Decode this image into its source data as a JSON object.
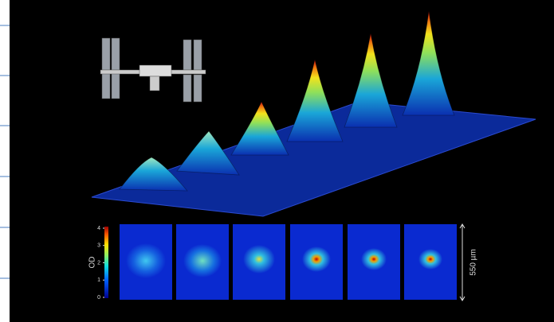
{
  "colorbar": {
    "label": "OD",
    "lim": [
      0,
      4
    ],
    "ticks": [
      0,
      1,
      2,
      3,
      4
    ]
  },
  "scale_bar": "550 µm"
}
